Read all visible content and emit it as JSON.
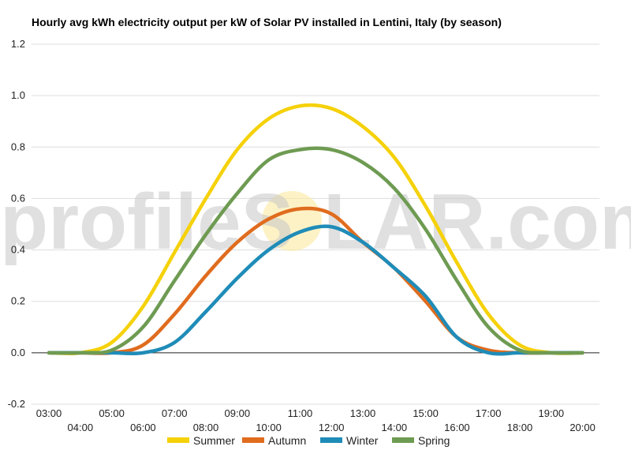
{
  "chart_data": {
    "type": "line",
    "title": "Hourly avg kWh electricity output per kW of Solar PV installed in Lentini, Italy (by season)",
    "x": [
      "03:00",
      "04:00",
      "05:00",
      "06:00",
      "07:00",
      "08:00",
      "09:00",
      "10:00",
      "11:00",
      "12:00",
      "13:00",
      "14:00",
      "15:00",
      "16:00",
      "17:00",
      "18:00",
      "19:00",
      "20:00"
    ],
    "ylim": [
      -0.2,
      1.2
    ],
    "yticks": [
      "-0.2",
      "0.0",
      "0.2",
      "0.4",
      "0.6",
      "0.8",
      "1.0",
      "1.2"
    ],
    "grid": true,
    "legend_position": "bottom",
    "series": [
      {
        "name": "Summer",
        "color": "#f5d10a",
        "values": [
          0.0,
          0.0,
          0.04,
          0.18,
          0.39,
          0.6,
          0.79,
          0.91,
          0.96,
          0.95,
          0.88,
          0.76,
          0.57,
          0.35,
          0.15,
          0.03,
          0.0,
          0.0
        ]
      },
      {
        "name": "Autumn",
        "color": "#e06c1e",
        "values": [
          0.0,
          0.0,
          0.0,
          0.03,
          0.15,
          0.3,
          0.43,
          0.52,
          0.56,
          0.54,
          0.43,
          0.33,
          0.2,
          0.06,
          0.01,
          0.0,
          0.0,
          0.0
        ]
      },
      {
        "name": "Winter",
        "color": "#1f8cb8",
        "values": [
          0.0,
          0.0,
          0.0,
          0.0,
          0.04,
          0.16,
          0.29,
          0.4,
          0.47,
          0.49,
          0.43,
          0.33,
          0.22,
          0.06,
          0.0,
          0.0,
          0.0,
          0.0
        ]
      },
      {
        "name": "Spring",
        "color": "#6e9b52",
        "values": [
          0.0,
          0.0,
          0.01,
          0.1,
          0.28,
          0.46,
          0.62,
          0.75,
          0.79,
          0.79,
          0.74,
          0.64,
          0.48,
          0.28,
          0.1,
          0.01,
          0.0,
          0.0
        ]
      }
    ]
  },
  "watermark": {
    "left": "profileS",
    "right": "LAR.com",
    "sun_color": "#fbe9a0"
  }
}
